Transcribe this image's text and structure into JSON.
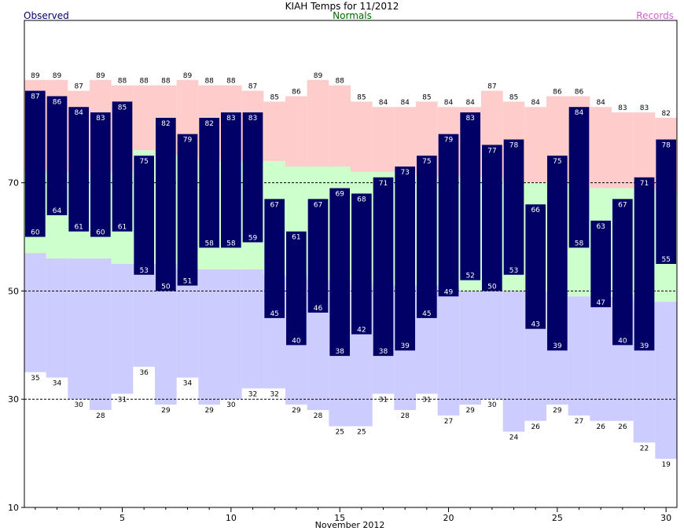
{
  "chart_data": {
    "type": "bar",
    "title": "KIAH Temps for 11/2012",
    "xlabel": "November 2012",
    "ylabel": "",
    "ylim": [
      10,
      100
    ],
    "xlim": [
      0.5,
      30.5
    ],
    "y_ticks": [
      10,
      30,
      50,
      70
    ],
    "x_ticks": [
      5,
      10,
      15,
      20,
      25,
      30
    ],
    "gridlines_y": [
      30,
      50,
      70
    ],
    "legend": [
      {
        "name": "Observed",
        "color": "#000066",
        "position": "top-left"
      },
      {
        "name": "Normals",
        "color": "#006600",
        "position": "top-center"
      },
      {
        "name": "Records",
        "color": "#cc66cc",
        "position": "top-right"
      }
    ],
    "colors": {
      "observed": "#000066",
      "normals": "#ccffcc",
      "record_high": "#ffcccc",
      "record_low": "#ccccff",
      "grid": "#000000"
    },
    "days": [
      1,
      2,
      3,
      4,
      5,
      6,
      7,
      8,
      9,
      10,
      11,
      12,
      13,
      14,
      15,
      16,
      17,
      18,
      19,
      20,
      21,
      22,
      23,
      24,
      25,
      26,
      27,
      28,
      29,
      30
    ],
    "series": [
      {
        "name": "Observed",
        "key": "obs_high",
        "values": [
          87,
          86,
          84,
          83,
          85,
          75,
          82,
          79,
          82,
          83,
          83,
          67,
          61,
          67,
          69,
          68,
          71,
          73,
          75,
          79,
          83,
          77,
          78,
          66,
          75,
          84,
          63,
          67,
          71,
          78
        ]
      },
      {
        "name": "Observed",
        "key": "obs_low",
        "values": [
          60,
          64,
          61,
          60,
          61,
          53,
          50,
          51,
          58,
          58,
          59,
          45,
          40,
          46,
          38,
          42,
          38,
          39,
          45,
          49,
          52,
          50,
          53,
          43,
          39,
          58,
          47,
          40,
          39,
          55
        ]
      },
      {
        "name": "Normals",
        "key": "normal_high",
        "values": [
          72,
          72,
          72,
          72,
          72,
          76,
          75,
          75,
          74,
          74,
          74,
          74,
          73,
          73,
          73,
          72,
          72,
          72,
          71,
          71,
          71,
          71,
          70,
          70,
          70,
          70,
          69,
          69,
          69,
          68
        ]
      },
      {
        "name": "Normals",
        "key": "normal_low",
        "values": [
          57,
          56,
          56,
          56,
          55,
          55,
          55,
          54,
          54,
          54,
          54,
          53,
          53,
          52,
          52,
          52,
          51,
          51,
          51,
          51,
          50,
          50,
          50,
          50,
          50,
          49,
          49,
          49,
          48,
          48
        ]
      },
      {
        "name": "Records",
        "key": "record_high",
        "values": [
          89,
          89,
          87,
          89,
          88,
          88,
          88,
          89,
          88,
          88,
          87,
          85,
          86,
          89,
          88,
          85,
          84,
          84,
          85,
          84,
          84,
          87,
          85,
          84,
          86,
          86,
          84,
          83,
          83,
          82
        ]
      },
      {
        "name": "Records",
        "key": "record_low",
        "values": [
          35,
          34,
          30,
          28,
          31,
          36,
          29,
          34,
          29,
          30,
          32,
          32,
          29,
          28,
          25,
          25,
          31,
          28,
          31,
          27,
          29,
          30,
          24,
          26,
          29,
          27,
          26,
          26,
          22,
          19
        ]
      }
    ]
  }
}
